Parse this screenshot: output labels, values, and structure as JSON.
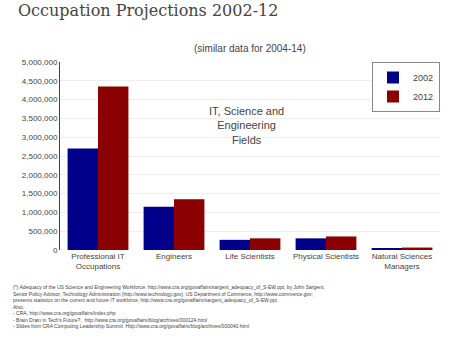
{
  "chart_data": {
    "type": "bar",
    "title": "Occupation Projections 2002-12",
    "subtitle": "(similar data for 2004-14)",
    "categories": [
      "Professional IT\nOccupations",
      "Engineers",
      "Life Scientists",
      "Physical Scientists",
      "Natural Sciences\nManagers"
    ],
    "series": [
      {
        "name": "2002",
        "color": "#00008B",
        "values": [
          2700000,
          1150000,
          270000,
          310000,
          50000
        ]
      },
      {
        "name": "2012",
        "color": "#8B0000",
        "values": [
          4350000,
          1350000,
          310000,
          360000,
          65000
        ]
      }
    ],
    "ylim": [
      0,
      5000000
    ],
    "yticks": [
      0,
      {
        "value": 500000,
        "label": "500,000"
      },
      {
        "value": 1000000,
        "label": "1,000,000"
      },
      {
        "value": 1500000,
        "label": "1,500,000"
      },
      {
        "value": 2000000,
        "label": "2,000,000"
      },
      {
        "value": 2500000,
        "label": "2,500,000"
      },
      {
        "value": 3000000,
        "label": "3,000,000"
      },
      {
        "value": 3500000,
        "label": "3,500,000"
      },
      {
        "value": 4000000,
        "label": "4,000,000"
      },
      {
        "value": 4500000,
        "label": "4,500,000"
      },
      {
        "value": 5000000,
        "label": "5,000,000"
      }
    ],
    "grid": true,
    "legend": "upper right",
    "annotation": "IT, Science and\nEngineering\nFields",
    "footnote": [
      "(*) Adequacy of the US Science and Engineering Workforce, http://www.cra.org/govaffairs/sargent_adequacy_of_S-EW.ppt, by John Sargent,",
      "Senior Policy Advisor, Technology Administration (http://www.technology.gov), US Department of Commerce, http://www.commerce.gov;",
      "presents statistics on the current and future IT workforce, http://www.cra.org/govaffairs/sargent_adequacy_of_S-EW.ppt",
      "Also,",
      "- CRA, http://www.cra.org/govaffairs/index.php",
      "- Brain Drain in Tech's Future?,  http://www.cra.org/govaffairs/blog/archives/000124.html",
      "- Slides from CRA Computing Leadership Summit  Http://www.cra.org/govaffairs/blog/archives/000040.html"
    ]
  }
}
